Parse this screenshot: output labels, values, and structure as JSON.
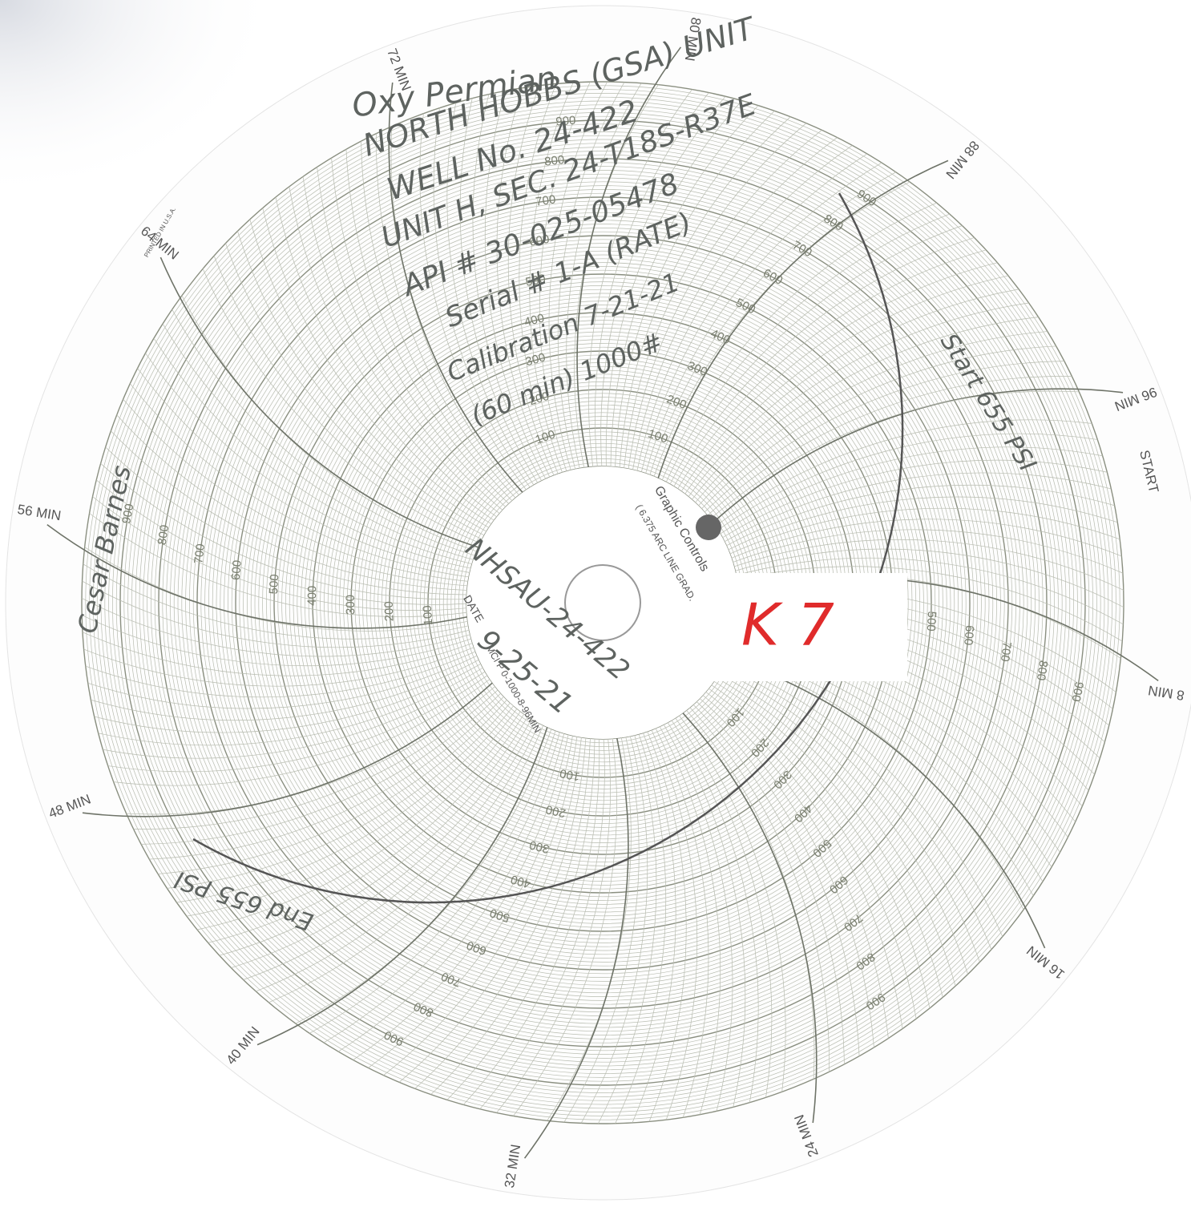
{
  "minute_labels": [
    "8 MIN",
    "16 MIN",
    "24 MIN",
    "32 MIN",
    "40 MIN",
    "48 MIN",
    "56 MIN",
    "64 MIN",
    "72 MIN",
    "80 MIN",
    "88 MIN",
    "96 MIN"
  ],
  "start_label": "START",
  "scale_labels": [
    "100",
    "200",
    "300",
    "400",
    "500",
    "600",
    "700",
    "800",
    "900"
  ],
  "hub": {
    "brand": "Graphic Controls",
    "grad": "( 6.375 ARC LINE GRAD.",
    "date_label": "DATE",
    "spec": "MCI P 0-1000-8-96MIN"
  },
  "printed": "PRINTED IN U.S.A.",
  "handwriting": {
    "company": "Oxy Permian",
    "unit": "NORTH HOBBS (GSA) UNIT",
    "well": "WELL No. 24-422",
    "location": "UNIT H, SEC. 24-T18S-R37E",
    "api": "API # 30-025-05478",
    "serial": "Serial # 1-A (RATE)",
    "calibration": "Calibration 7-21-21",
    "range": "(60 min) 1000#",
    "start": "Start 655 PSI",
    "end": "End 655 PSI",
    "signature": "Cesar Barnes",
    "well_id": "NHSAU-24-422",
    "date": "9-25-21",
    "stamp": "K 7"
  }
}
